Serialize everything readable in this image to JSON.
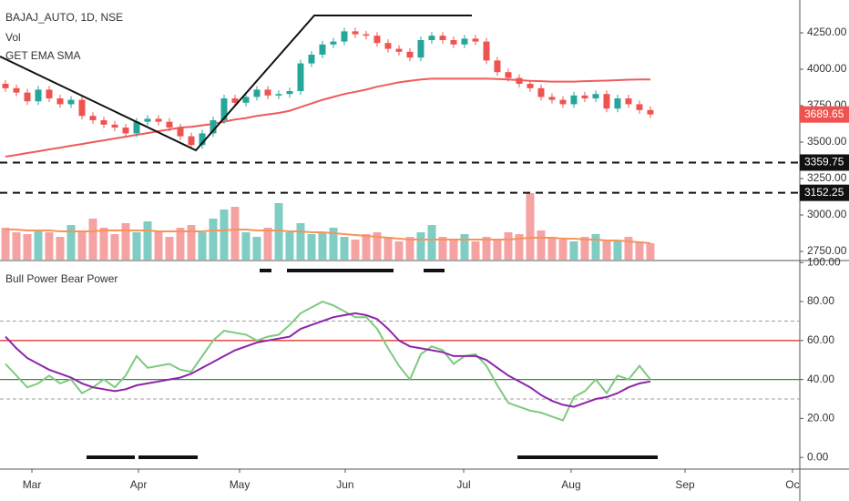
{
  "chart_data": [
    {
      "type": "candlestick",
      "title": "BAJAJ_AUTO, 1D, NSE",
      "volume_title": "Vol",
      "overlay_title": "GET EMA SMA",
      "x": [
        0,
        1,
        2,
        3,
        4,
        5,
        6,
        7,
        8,
        9,
        10,
        11,
        12,
        13,
        14,
        15,
        16,
        17,
        18,
        19,
        20,
        21,
        22,
        23,
        24,
        25,
        26,
        27,
        28,
        29,
        30,
        31,
        32,
        33,
        34,
        35,
        36,
        37,
        38,
        39,
        40,
        41,
        42,
        43,
        44,
        45,
        46,
        47,
        48,
        49,
        50,
        51,
        52,
        53,
        54,
        55,
        56,
        57,
        58,
        59
      ],
      "open": [
        3900,
        3870,
        3840,
        3780,
        3860,
        3800,
        3760,
        3790,
        3680,
        3650,
        3620,
        3600,
        3560,
        3640,
        3660,
        3640,
        3600,
        3540,
        3480,
        3560,
        3650,
        3800,
        3770,
        3810,
        3860,
        3820,
        3830,
        3850,
        4040,
        4100,
        4170,
        4190,
        4260,
        4240,
        4230,
        4180,
        4140,
        4120,
        4080,
        4200,
        4230,
        4200,
        4170,
        4210,
        4190,
        4060,
        3980,
        3940,
        3900,
        3870,
        3810,
        3790,
        3760,
        3820,
        3800,
        3830,
        3730,
        3800,
        3760,
        3720
      ],
      "high": [
        3925,
        3895,
        3865,
        3885,
        3885,
        3825,
        3815,
        3815,
        3705,
        3675,
        3645,
        3625,
        3665,
        3685,
        3685,
        3665,
        3625,
        3565,
        3585,
        3675,
        3825,
        3825,
        3835,
        3885,
        3885,
        3855,
        3875,
        4065,
        4125,
        4195,
        4215,
        4285,
        4285,
        4265,
        4255,
        4205,
        4165,
        4145,
        4225,
        4255,
        4255,
        4225,
        4235,
        4235,
        4215,
        4085,
        4005,
        3965,
        3925,
        3895,
        3835,
        3815,
        3845,
        3845,
        3855,
        3855,
        3825,
        3825,
        3785,
        3745
      ],
      "low": [
        3845,
        3815,
        3755,
        3755,
        3775,
        3735,
        3735,
        3655,
        3625,
        3595,
        3575,
        3535,
        3535,
        3615,
        3615,
        3575,
        3515,
        3455,
        3455,
        3535,
        3625,
        3745,
        3745,
        3785,
        3795,
        3795,
        3805,
        3825,
        4015,
        4075,
        4145,
        4165,
        4215,
        4205,
        4155,
        4115,
        4095,
        4055,
        4055,
        4175,
        4175,
        4145,
        4145,
        4165,
        4035,
        3955,
        3915,
        3875,
        3845,
        3785,
        3765,
        3735,
        3735,
        3775,
        3775,
        3705,
        3705,
        3735,
        3695,
        3665
      ],
      "close": [
        3870,
        3840,
        3780,
        3860,
        3800,
        3760,
        3790,
        3680,
        3650,
        3620,
        3600,
        3560,
        3640,
        3660,
        3640,
        3600,
        3540,
        3480,
        3560,
        3650,
        3800,
        3770,
        3810,
        3860,
        3820,
        3830,
        3850,
        4040,
        4100,
        4170,
        4190,
        4260,
        4240,
        4230,
        4180,
        4140,
        4120,
        4080,
        4200,
        4230,
        4200,
        4170,
        4210,
        4190,
        4060,
        3980,
        3940,
        3900,
        3870,
        3810,
        3790,
        3760,
        3820,
        3800,
        3830,
        3730,
        3800,
        3760,
        3720,
        3689.65
      ],
      "up_color": "#26a69a",
      "down_color": "#ef5350",
      "series": [
        {
          "color": "#f05a5a",
          "values": [
            3400,
            3412,
            3425,
            3437,
            3450,
            3462,
            3475,
            3487,
            3500,
            3512,
            3525,
            3537,
            3550,
            3562,
            3575,
            3587,
            3600,
            3605,
            3615,
            3625,
            3640,
            3655,
            3665,
            3680,
            3690,
            3700,
            3715,
            3740,
            3765,
            3790,
            3810,
            3830,
            3845,
            3860,
            3880,
            3895,
            3910,
            3920,
            3930,
            3935,
            3935,
            3935,
            3935,
            3935,
            3935,
            3933,
            3930,
            3925,
            3920,
            3918,
            3915,
            3915,
            3915,
            3918,
            3920,
            3922,
            3925,
            3928,
            3930,
            3930
          ]
        }
      ],
      "volume": {
        "values": [
          35,
          30,
          28,
          32,
          30,
          25,
          38,
          30,
          45,
          35,
          28,
          40,
          30,
          42,
          32,
          25,
          35,
          38,
          30,
          45,
          55,
          58,
          30,
          25,
          35,
          62,
          30,
          40,
          28,
          30,
          35,
          25,
          22,
          28,
          30,
          25,
          20,
          25,
          30,
          38,
          25,
          22,
          28,
          20,
          25,
          22,
          30,
          28,
          73,
          32,
          25,
          22,
          20,
          25,
          28,
          22,
          20,
          25,
          20,
          18
        ],
        "ma": [
          33,
          33,
          32,
          32,
          32,
          31,
          31,
          31,
          31,
          32,
          32,
          32,
          32,
          32,
          31,
          31,
          31,
          31,
          31,
          32,
          32,
          33,
          33,
          32,
          32,
          32,
          31,
          31,
          30,
          30,
          29,
          28,
          27,
          26,
          25,
          24,
          23,
          22,
          22,
          22,
          22,
          22,
          22,
          22,
          22,
          22,
          22,
          23,
          24,
          24,
          24,
          23,
          23,
          22,
          22,
          21,
          21,
          20,
          19,
          18
        ],
        "vlim": [
          0,
          100
        ],
        "up_color": "#80cdc4",
        "down_color": "#f4a3a2",
        "ma_color": "#f7945a"
      },
      "levels": [
        3359.75,
        3152.25
      ],
      "xlim": [
        -0.5,
        72.67
      ],
      "ylim": [
        2694,
        4475
      ],
      "yticks": [
        {
          "value": 4250,
          "label": "4250.00"
        },
        {
          "value": 4000,
          "label": "4000.00"
        },
        {
          "value": 3750,
          "label": "3750.00"
        },
        {
          "value": 3500,
          "label": "3500.00"
        },
        {
          "value": 3250,
          "label": "3250.00"
        },
        {
          "value": 3000,
          "label": "3000.00"
        },
        {
          "value": 2750,
          "label": "2750.00"
        }
      ]
    },
    {
      "type": "line",
      "title": "Bull Power Bear Power",
      "series": [
        {
          "color": "#7fc97f",
          "values": [
            48,
            42,
            36,
            38,
            42,
            38,
            40,
            33,
            36,
            40,
            36,
            42,
            52,
            46,
            47,
            48,
            45,
            44,
            52,
            60,
            65,
            64,
            63,
            60,
            62,
            63,
            68,
            74,
            77,
            80,
            78,
            75,
            72,
            72,
            66,
            56,
            47,
            40,
            53,
            57,
            55,
            48,
            52,
            53,
            47,
            37,
            28,
            26,
            24,
            23,
            21,
            19,
            31,
            34,
            40,
            33,
            42,
            40,
            47,
            40
          ]
        },
        {
          "color": "#8e24aa",
          "values": [
            62,
            56,
            51,
            48,
            45,
            43,
            41,
            38,
            36,
            35,
            34,
            35,
            37,
            38,
            39,
            40,
            41,
            43,
            46,
            49,
            52,
            55,
            57,
            59,
            60,
            61,
            62,
            66,
            68,
            70,
            72,
            73,
            74,
            73,
            71,
            66,
            60,
            57,
            56,
            55,
            54,
            52,
            52,
            52,
            50,
            46,
            42,
            39,
            36,
            32,
            29,
            27,
            26,
            28,
            30,
            31,
            33,
            36,
            38,
            39
          ]
        }
      ],
      "levels": [
        {
          "value": 70,
          "color": "#9e9e9e",
          "dashed": true
        },
        {
          "value": 60,
          "color": "#e53935"
        },
        {
          "value": 40,
          "color": "#388e3c"
        },
        {
          "value": 30,
          "color": "#9e9e9e",
          "dashed": true
        }
      ],
      "xlim": [
        -0.5,
        72.67
      ],
      "ylim": [
        -6,
        100.6
      ],
      "yticks": [
        {
          "value": 100,
          "label": "100.00"
        },
        {
          "value": 80,
          "label": "80.00"
        },
        {
          "value": 60,
          "label": "60.00"
        },
        {
          "value": 40,
          "label": "40.00"
        },
        {
          "value": 20,
          "label": "20.00"
        },
        {
          "value": 0,
          "label": "0.00"
        }
      ],
      "xticks": [
        {
          "value": 2.42,
          "label": "Mar"
        },
        {
          "value": 12.17,
          "label": "Apr"
        },
        {
          "value": 21.42,
          "label": "May"
        },
        {
          "value": 31.08,
          "label": "Jun"
        },
        {
          "value": 41.92,
          "label": "Jul"
        },
        {
          "value": 51.75,
          "label": "Aug"
        },
        {
          "value": 62.17,
          "label": "Sep"
        },
        {
          "value": 72,
          "label": "Oc"
        }
      ]
    }
  ]
}
